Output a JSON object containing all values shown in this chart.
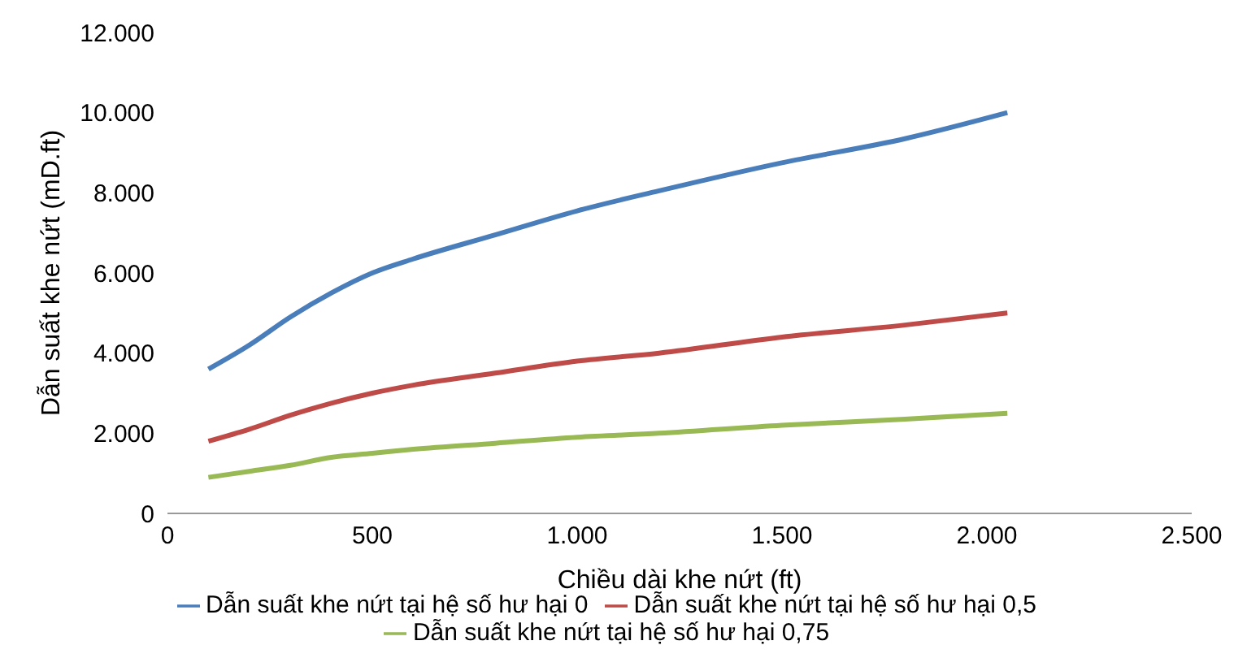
{
  "chart_data": {
    "type": "line",
    "xlabel": "Chiều dài khe nứt (ft)",
    "ylabel": "Dẫn suất khe nứt (mD.ft)",
    "xlim": [
      0,
      2500
    ],
    "xticks": [
      0,
      500,
      {
        "value": 1000,
        "label": "1.000"
      },
      {
        "value": 1500,
        "label": "1.500"
      },
      {
        "value": 2000,
        "label": "2.000"
      },
      {
        "value": 2500,
        "label": "2.500"
      }
    ],
    "ylim": [
      0,
      12000
    ],
    "yticks": [
      0,
      {
        "value": 2000,
        "label": "2.000"
      },
      {
        "value": 4000,
        "label": "4.000"
      },
      {
        "value": 6000,
        "label": "6.000"
      },
      {
        "value": 8000,
        "label": "8.000"
      },
      {
        "value": 10000,
        "label": "10.000"
      },
      {
        "value": 12000,
        "label": "12.000"
      }
    ],
    "x": [
      100,
      200,
      300,
      400,
      500,
      600,
      800,
      1000,
      1200,
      1500,
      1800,
      2050
    ],
    "grid": false,
    "legend": "bottom",
    "marker": "none",
    "line_style": "solid",
    "series": [
      {
        "name": "Dẫn suất khe nứt tại hệ số hư hại 0",
        "color": "#4a7ebb",
        "values": [
          3600,
          4200,
          4900,
          5500,
          6000,
          6350,
          6950,
          7550,
          8050,
          8750,
          9350,
          10000
        ]
      },
      {
        "name": "Dẫn suất khe nứt tại hệ số hư hại 0,5",
        "color": "#be4b48",
        "values": [
          1800,
          2100,
          2450,
          2750,
          3000,
          3200,
          3500,
          3800,
          4000,
          4400,
          4700,
          5000
        ]
      },
      {
        "name": "Dẫn suất khe nứt tại hệ số hư hại 0,75",
        "color": "#98b954",
        "values": [
          900,
          1050,
          1200,
          1400,
          1500,
          1600,
          1750,
          1900,
          2000,
          2200,
          2350,
          2500
        ]
      }
    ]
  }
}
